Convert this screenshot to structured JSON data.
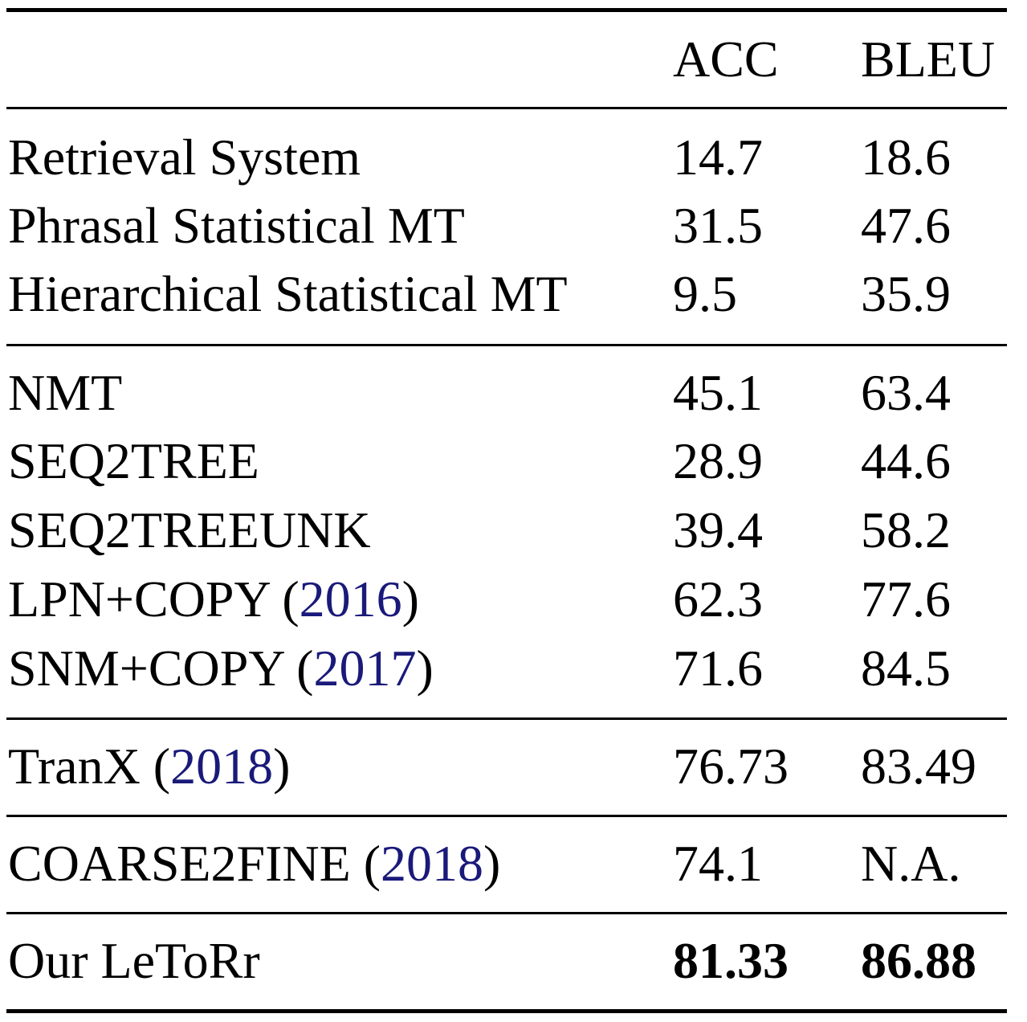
{
  "table": {
    "header": {
      "method": "",
      "acc": "ACC",
      "bleu": "BLEU"
    },
    "groups": [
      {
        "rows": [
          {
            "method": "Retrieval System",
            "acc": "14.7",
            "bleu": "18.6"
          },
          {
            "method": "Phrasal Statistical MT",
            "acc": "31.5",
            "bleu": "47.6"
          },
          {
            "method": "Hierarchical Statistical MT",
            "acc": "9.5",
            "bleu": "35.9"
          }
        ]
      },
      {
        "rows": [
          {
            "method": "NMT",
            "acc": "45.1",
            "bleu": "63.4"
          },
          {
            "method": "SEQ2TREE",
            "acc": "28.9",
            "bleu": "44.6"
          },
          {
            "method": "SEQ2TREEUNK",
            "acc": "39.4",
            "bleu": "58.2"
          },
          {
            "method": "LPN+COPY",
            "cite": "2016",
            "acc": "62.3",
            "bleu": "77.6"
          },
          {
            "method": "SNM+COPY",
            "cite": "2017",
            "acc": "71.6",
            "bleu": "84.5"
          }
        ]
      },
      {
        "rows": [
          {
            "method": "TranX",
            "cite": "2018",
            "acc": "76.73",
            "bleu": "83.49"
          }
        ]
      },
      {
        "rows": [
          {
            "method": "COARSE2FINE",
            "cite": "2018",
            "acc": "74.1",
            "bleu": "N.A."
          }
        ]
      },
      {
        "rows": [
          {
            "method": "Our LeToRr",
            "acc": "81.33",
            "bleu": "86.88"
          }
        ]
      }
    ]
  },
  "colors": {
    "citation": "#1a1a7a",
    "text": "#000000",
    "rules": "#000000"
  }
}
